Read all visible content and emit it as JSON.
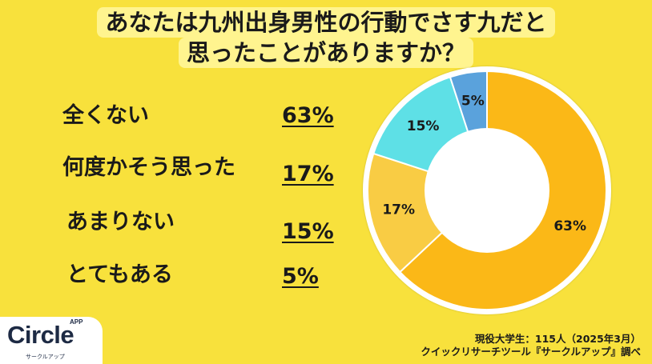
{
  "colors": {
    "background": "#F8E13C",
    "title_background": "#FFF48F",
    "text": "#1A1A1A",
    "logo": "#1D2A44"
  },
  "chart_data": {
    "type": "pie",
    "donut": true,
    "title": [
      "あなたは九州出身男性の行動でさす九だと",
      "思ったことがありますか？"
    ],
    "categories": [
      "全くない",
      "何度かそう思った",
      "あまりない",
      "とてもある"
    ],
    "values": [
      63,
      17,
      15,
      5
    ],
    "data_labels": [
      "63%",
      "17%",
      "15%",
      "5%"
    ],
    "colors": [
      "#FBB817",
      "#F9CC44",
      "#5EE0E6",
      "#5AA2DC"
    ],
    "legend_position": "left"
  },
  "footer": {
    "survey": "現役大学生：115人（2025年3月）",
    "source": "クイックリサーチツール『サークルアップ』調べ"
  },
  "logo": {
    "name": "Circle",
    "superscript": "APP",
    "subtitle": "サークルアップ"
  }
}
